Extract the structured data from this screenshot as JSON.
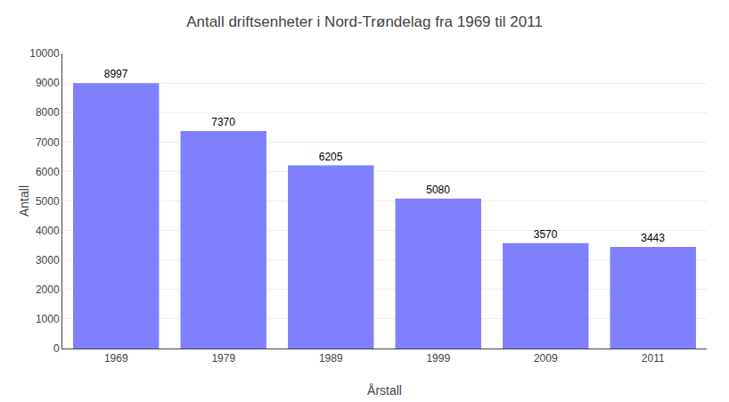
{
  "chart_data": {
    "type": "bar",
    "title": "Antall driftsenheter i Nord-Trøndelag fra 1969 til 2011",
    "xlabel": "Årstall",
    "ylabel": "Antall",
    "categories": [
      "1969",
      "1979",
      "1989",
      "1999",
      "2009",
      "2011"
    ],
    "values": [
      8997,
      7370,
      6205,
      5080,
      3570,
      3443
    ],
    "color": "#8080ff",
    "ylim": [
      0,
      10000
    ],
    "yticks": [
      0,
      1000,
      2000,
      3000,
      4000,
      5000,
      6000,
      7000,
      8000,
      9000,
      10000
    ],
    "grid": true,
    "data_labels": true
  }
}
